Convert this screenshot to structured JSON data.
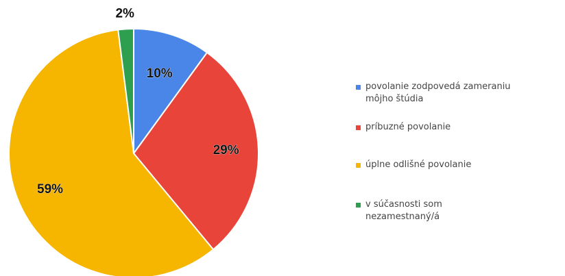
{
  "chart_data": {
    "type": "pie",
    "slices": [
      {
        "label": "povolanie zodpovedá zameraniu\nmôjho štúdia",
        "value": 10,
        "display": "10%",
        "color": "#4A86E8"
      },
      {
        "label": "príbuzné povolanie",
        "value": 29,
        "display": "29%",
        "color": "#E8443A"
      },
      {
        "label": "úplne odlišné povolanie",
        "value": 59,
        "display": "59%",
        "color": "#F6B600"
      },
      {
        "label": "v súčasnosti som\nnezamestnaný/á",
        "value": 2,
        "display": "2%",
        "color": "#2E9E4F"
      }
    ],
    "start_angle": "12 o'clock",
    "direction": "clockwise",
    "legend": "right"
  }
}
